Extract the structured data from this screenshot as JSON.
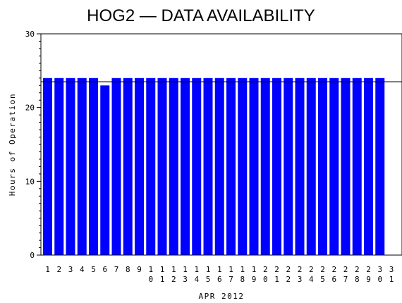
{
  "chart_data": {
    "type": "bar",
    "title": "HOG2 — DATA AVAILABILITY",
    "xlabel": "APR 2012",
    "ylabel": "Hours of Operation",
    "ylim": [
      0,
      30
    ],
    "yticks": [
      0,
      10,
      20,
      30
    ],
    "categories": [
      "1",
      "2",
      "3",
      "4",
      "5",
      "6",
      "7",
      "8",
      "9",
      "10",
      "11",
      "12",
      "13",
      "14",
      "15",
      "16",
      "17",
      "18",
      "19",
      "20",
      "21",
      "22",
      "23",
      "24",
      "25",
      "26",
      "27",
      "28",
      "29",
      "30",
      "31"
    ],
    "values": [
      24,
      24,
      24,
      24,
      24,
      23,
      24,
      24,
      24,
      24,
      24,
      24,
      24,
      24,
      24,
      24,
      24,
      24,
      24,
      24,
      24,
      24,
      24,
      24,
      24,
      24,
      24,
      24,
      24,
      24,
      null
    ],
    "reference_line": 24,
    "bar_color": "#0000ff",
    "grid": false
  }
}
